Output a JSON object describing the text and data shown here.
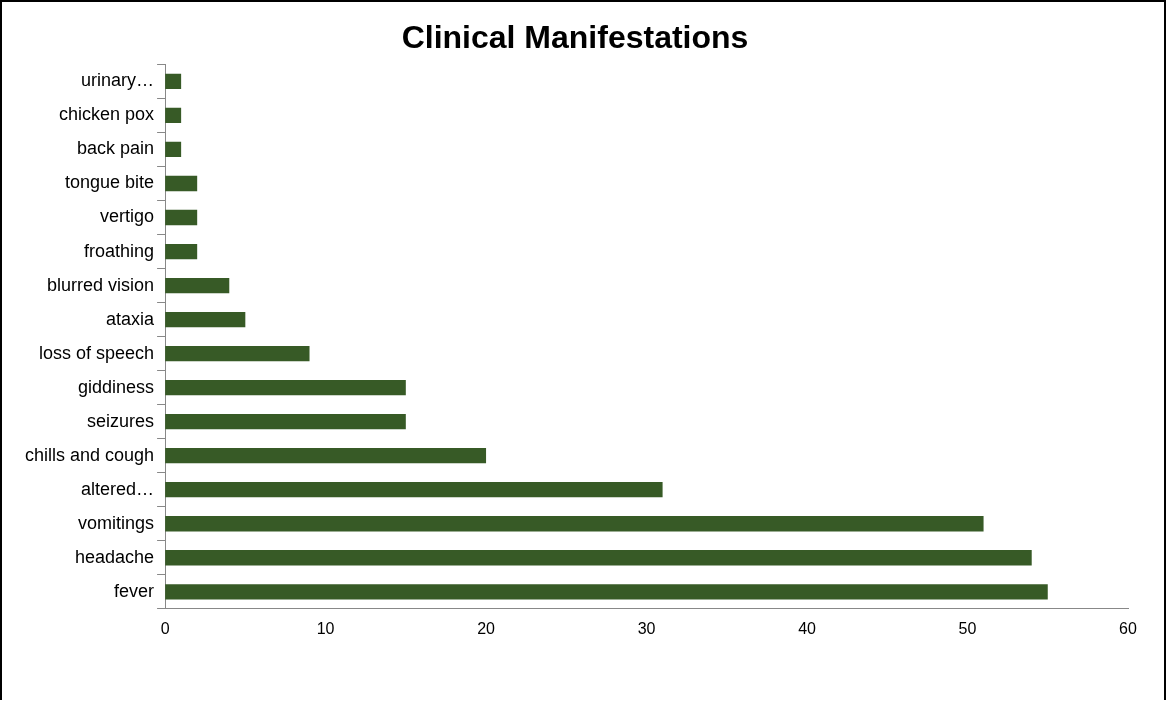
{
  "chart_data": {
    "type": "bar",
    "orientation": "horizontal",
    "title": "Clinical Manifestations",
    "categories": [
      "urinary…",
      "chicken pox",
      "back pain",
      "tongue bite",
      "vertigo",
      "froathing",
      "blurred vision",
      "ataxia",
      "loss of speech",
      "giddiness",
      "seizures",
      "chills and cough",
      "altered…",
      "vomitings",
      "headache",
      "fever"
    ],
    "values": [
      1,
      1,
      1,
      2,
      2,
      2,
      4,
      5,
      9,
      15,
      15,
      20,
      31,
      51,
      54,
      55
    ],
    "color": "#375a26",
    "xlim": [
      0,
      60
    ],
    "xticks": [
      0,
      10,
      20,
      30,
      40,
      50,
      60
    ],
    "grid": false,
    "legend": false
  }
}
